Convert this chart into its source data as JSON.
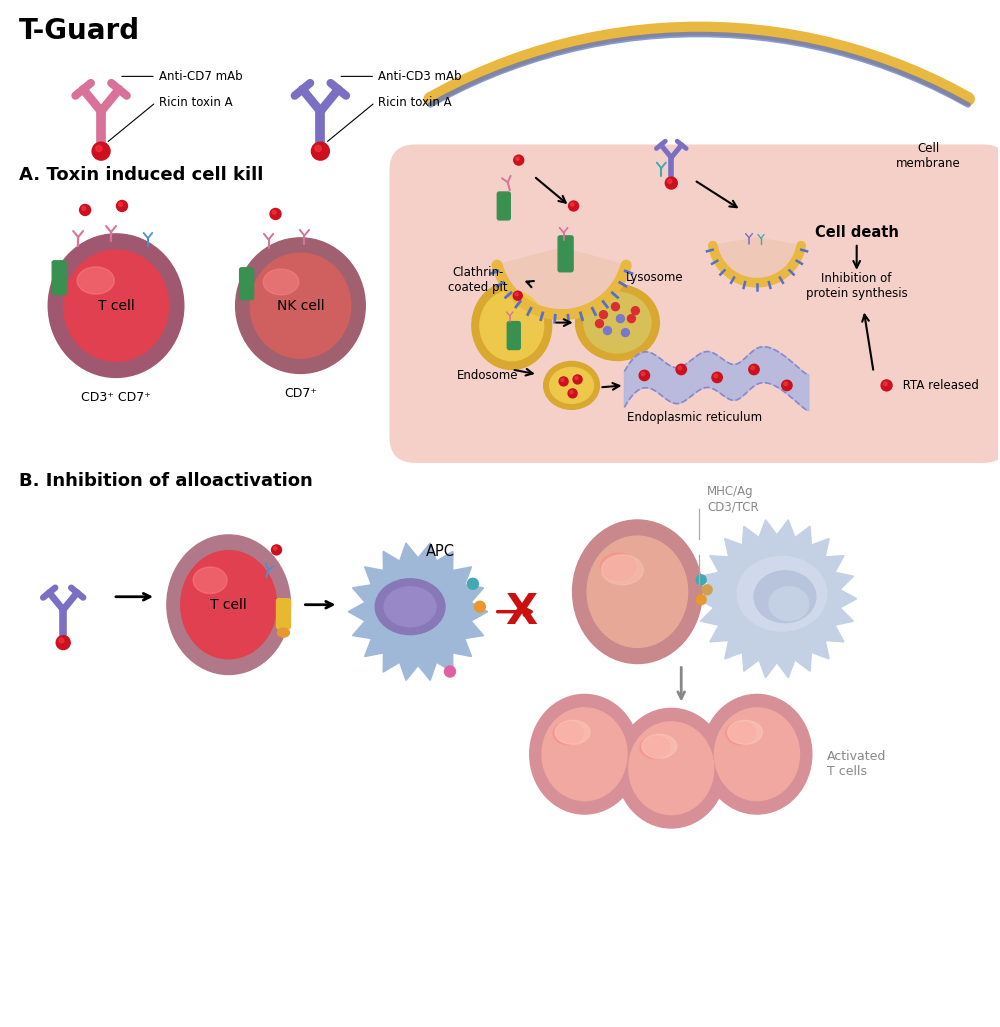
{
  "title": "T-Guard",
  "section_a": "A. Toxin induced cell kill",
  "section_b": "B. Inhibition of alloactivation",
  "pink_ab_color": "#d9729a",
  "purple_ab_color": "#7b6fc4",
  "blue_ab_color": "#4a90d0",
  "teal_ab_color": "#40aab0",
  "red_ball_color": "#cc1020",
  "tcell_outer": "#a05870",
  "tcell_inner": "#e04050",
  "nkcell_outer": "#a06070",
  "nkcell_inner": "#d06060",
  "cell_membrane_color": "#e8b840",
  "cell_interior_color": "#f5d0c8",
  "clathrin_color": "#5570c8",
  "endosome_color": "#d8a830",
  "lysosome_color": "#d8a830",
  "er_color": "#b0b8e0",
  "green_receptor": "#3a9050",
  "apc_color": "#a0b8d8",
  "apc_nucleus": "#8090b8",
  "background": "#ffffff",
  "tcell_b_outer": "#b07888",
  "tcell_b_inner": "#e04050",
  "activated_outer": "#d89098",
  "activated_inner": "#f0a8a0"
}
